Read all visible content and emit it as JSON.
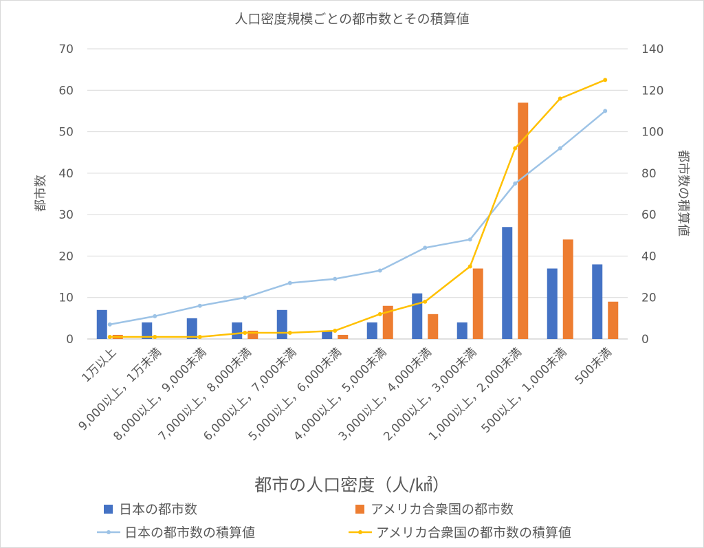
{
  "chart_data": {
    "type": "bar",
    "title": "人口密度規模ごとの都市数とその積算値",
    "xlabel": "都市の人口密度（人/㎢）",
    "ylabel": "都市数",
    "y2label": "都市数の積算値",
    "ylim": [
      0,
      70
    ],
    "y2lim": [
      0,
      140
    ],
    "yticks": [
      "0",
      "10",
      "20",
      "30",
      "40",
      "50",
      "60",
      "70"
    ],
    "y2ticks": [
      "0",
      "20",
      "40",
      "60",
      "80",
      "100",
      "120",
      "140"
    ],
    "grid": true,
    "legend_position": "bottom",
    "categories": [
      "1万以上",
      "9,000以上，1万未満",
      "8,000以上，9,000未満",
      "7,000以上，8,000未満",
      "6,000以上，7,000未満",
      "5,000以上，6,000未満",
      "4,000以上，5,000未満",
      "3,000以上，4,000未満",
      "2,000以上，3,000未満",
      "1,000以上，2,000未満",
      "500以上，1,000未満",
      "500未満"
    ],
    "series": [
      {
        "name": "日本の都市数",
        "kind": "bar",
        "axis": "left",
        "color": "#4472c4",
        "values": [
          7,
          4,
          5,
          4,
          7,
          2,
          4,
          11,
          4,
          27,
          17,
          18
        ]
      },
      {
        "name": "アメリカ合衆国の都市数",
        "kind": "bar",
        "axis": "left",
        "color": "#ed7d31",
        "values": [
          1,
          0,
          0,
          2,
          0,
          1,
          8,
          6,
          17,
          57,
          24,
          9
        ]
      },
      {
        "name": "日本の都市数の積算値",
        "kind": "line",
        "axis": "right",
        "color": "#9dc3e6",
        "values": [
          7,
          11,
          16,
          20,
          27,
          29,
          33,
          44,
          48,
          75,
          92,
          110
        ]
      },
      {
        "name": "アメリカ合衆国の都市数の積算値",
        "kind": "line",
        "axis": "right",
        "color": "#ffc000",
        "values": [
          1,
          1,
          1,
          3,
          3,
          4,
          12,
          18,
          35,
          92,
          116,
          125
        ]
      }
    ]
  }
}
